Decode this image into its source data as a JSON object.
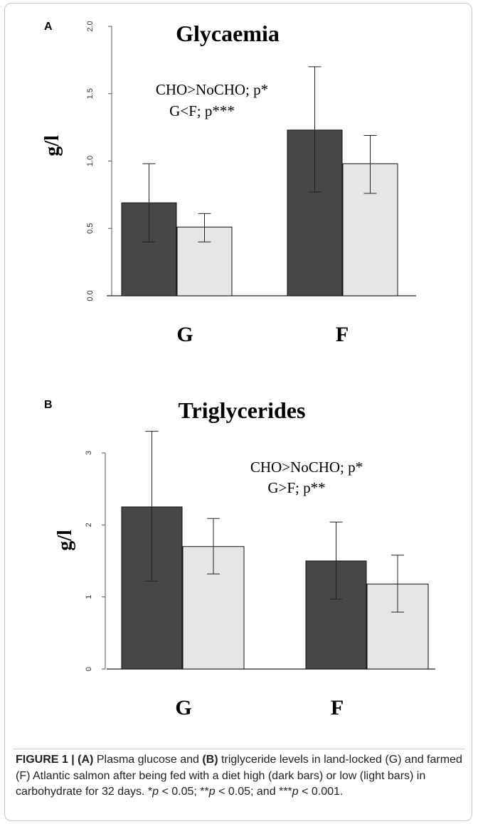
{
  "chart_data": [
    {
      "panel": "A",
      "type": "bar",
      "title": "Glycaemia",
      "ylabel": "g/l",
      "categories": [
        "G",
        "F"
      ],
      "series": [
        {
          "values": [
            0.69,
            1.23
          ],
          "err_low": [
            0.4,
            0.77
          ],
          "err_high": [
            0.98,
            1.7
          ],
          "color": "#474747"
        },
        {
          "values": [
            0.51,
            0.98
          ],
          "err_low": [
            0.4,
            0.76
          ],
          "err_high": [
            0.61,
            1.19
          ],
          "color": "#e6e6e6"
        }
      ],
      "ylim": [
        0,
        2
      ],
      "yticks": [
        "0.0",
        "0.5",
        "1.0",
        "1.5",
        "2.0"
      ],
      "annotations": [
        "CHO>NoCHO; p*",
        "G<F; p***"
      ]
    },
    {
      "panel": "B",
      "type": "bar",
      "title": "Triglycerides",
      "ylabel": "g/l",
      "categories": [
        "G",
        "F"
      ],
      "series": [
        {
          "values": [
            2.25,
            1.5
          ],
          "err_low": [
            1.22,
            0.97
          ],
          "err_high": [
            3.3,
            2.04
          ],
          "color": "#474747"
        },
        {
          "values": [
            1.7,
            1.18
          ],
          "err_low": [
            1.32,
            0.79
          ],
          "err_high": [
            2.09,
            1.58
          ],
          "color": "#e6e6e6"
        }
      ],
      "ylim": [
        0,
        3
      ],
      "yticks": [
        "0",
        "1",
        "2",
        "3"
      ],
      "annotations": [
        "CHO>NoCHO; p*",
        "G>F; p**"
      ]
    }
  ],
  "caption": {
    "label": "FIGURE 1 |",
    "a_ref": "(A)",
    "text1": " Plasma glucose and ",
    "b_ref": "(B)",
    "text2": " triglyceride levels in land-locked (G) and farmed (F) Atlantic salmon after being fed with a diet high (dark bars) or low (light bars) in carbohydrate for 32 days. *",
    "p1": "p",
    "t1": " < 0.05; **",
    "p2": "p",
    "t2": " < 0.05; and ***",
    "p3": "p",
    "t3": " < 0.001."
  }
}
